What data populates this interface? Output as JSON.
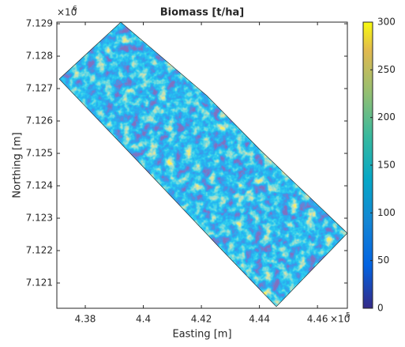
{
  "chart_data": {
    "type": "image",
    "title": "Biomass [t/ha]",
    "x_label": "Easting [m]",
    "y_label": "Northing [m]",
    "x_multiplier": "×10",
    "x_multiplier_exponent": "5",
    "y_multiplier": "×10",
    "y_multiplier_exponent": "6",
    "xlim": [
      437020,
      447030
    ],
    "xticks": [
      {
        "value": 438000,
        "label": "4.38"
      },
      {
        "value": 440000,
        "label": "4.4"
      },
      {
        "value": 442000,
        "label": "4.42"
      },
      {
        "value": 444000,
        "label": "4.44"
      },
      {
        "value": 446000,
        "label": "4.46"
      }
    ],
    "ylim": [
      7120220,
      7129050
    ],
    "yticks": [
      {
        "value": 7121000,
        "label": "7.121"
      },
      {
        "value": 7122000,
        "label": "7.122"
      },
      {
        "value": 7123000,
        "label": "7.123"
      },
      {
        "value": 7124000,
        "label": "7.124"
      },
      {
        "value": 7125000,
        "label": "7.125"
      },
      {
        "value": 7126000,
        "label": "7.126"
      },
      {
        "value": 7127000,
        "label": "7.127"
      },
      {
        "value": 7128000,
        "label": "7.128"
      },
      {
        "value": 7129000,
        "label": "7.129"
      }
    ],
    "colormap": "parula",
    "clim": [
      0,
      300
    ],
    "cticks": [
      0,
      50,
      100,
      150,
      200,
      250,
      300
    ]
  }
}
